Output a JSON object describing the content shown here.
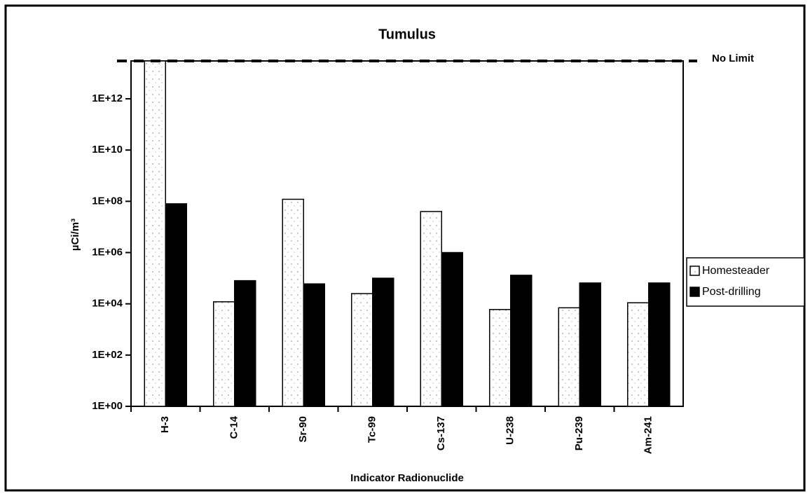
{
  "chart_data": {
    "type": "bar",
    "title": "Tumulus",
    "x_label": "Indicator Radionuclide",
    "y_label": "µCi/m³",
    "categories": [
      "H-3",
      "C-14",
      "Sr-90",
      "Tc-99",
      "Cs-137",
      "U-238",
      "Pu-239",
      "Am-241"
    ],
    "series": [
      {
        "name": "Homesteader",
        "color": "#ffffff",
        "values": [
          30000000000000,
          12000,
          120000000,
          25000,
          40000000,
          6000,
          7000,
          11000
        ]
      },
      {
        "name": "Post-drilling",
        "color": "#000000",
        "values": [
          80000000,
          80000,
          60000,
          100000,
          1000000,
          130000,
          65000,
          65000
        ]
      }
    ],
    "log_scale": true,
    "ylim": [
      1,
      30000000000000
    ],
    "yticks": [
      {
        "value": 1,
        "label": "1E+00"
      },
      {
        "value": 100,
        "label": "1E+02"
      },
      {
        "value": 10000,
        "label": "1E+04"
      },
      {
        "value": 1000000,
        "label": "1E+06"
      },
      {
        "value": 100000000,
        "label": "1E+08"
      },
      {
        "value": 10000000000,
        "label": "1E+10"
      },
      {
        "value": 1000000000000,
        "label": "1E+12"
      }
    ],
    "reference_line": {
      "value": 30000000000000,
      "label": "No Limit"
    },
    "legend": "right"
  }
}
